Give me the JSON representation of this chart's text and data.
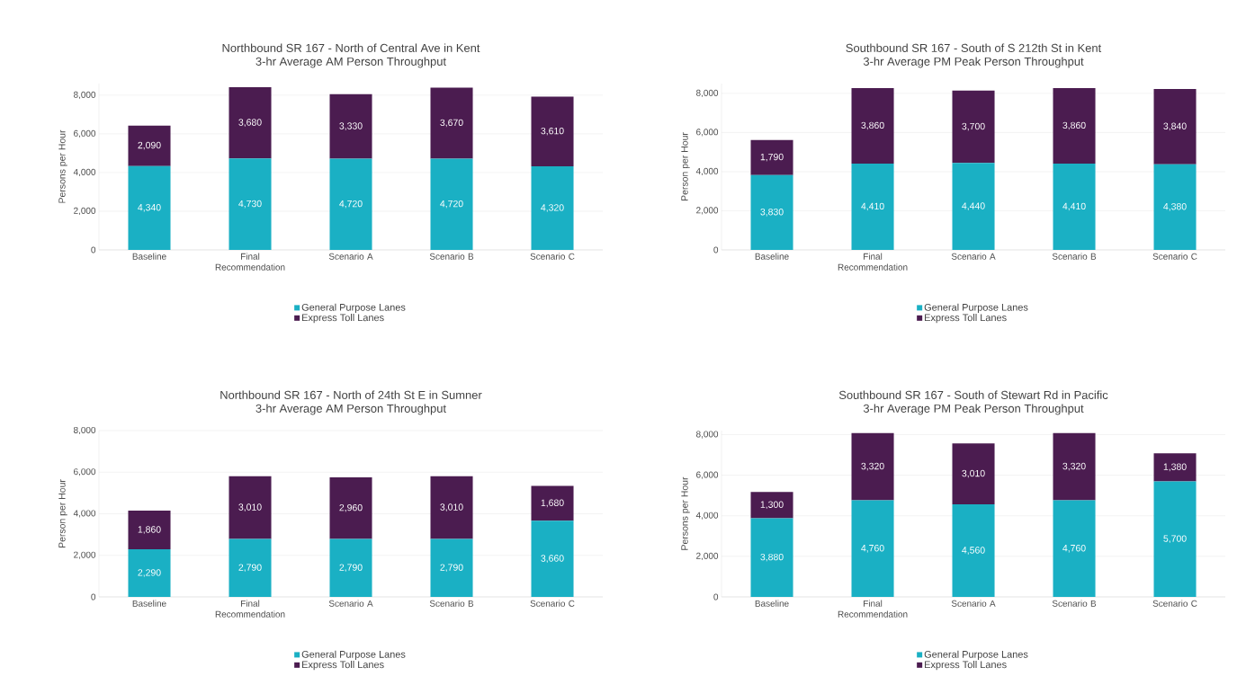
{
  "chart_data": [
    {
      "type": "bar",
      "stacked": true,
      "title": "Northbound SR 167  - North of Central Ave in Kent",
      "subtitle": "3-hr Average AM Person Throughput",
      "ylabel": "Persons per Hour",
      "categories": [
        "Baseline",
        "Final Recommendation",
        "Scenario A",
        "Scenario B",
        "Scenario C"
      ],
      "series": [
        {
          "name": "General Purpose Lanes",
          "color": "#1ab0c4",
          "values": [
            4340,
            4730,
            4720,
            4720,
            4320
          ],
          "value_labels": [
            "4,340",
            "4,730",
            "4,720",
            "4,720",
            "4,320"
          ]
        },
        {
          "name": "Express Toll Lanes",
          "color": "#4b1c50",
          "values": [
            2090,
            3680,
            3330,
            3670,
            3610
          ],
          "value_labels": [
            "2,090",
            "3,680",
            "3,330",
            "3,670",
            "3,610"
          ]
        }
      ],
      "ylim": [
        0,
        8600
      ],
      "yticks": [
        0,
        {
          "value": 2000,
          "label": "2,000"
        },
        {
          "value": 4000,
          "label": "4,000"
        },
        {
          "value": 6000,
          "label": "6,000"
        },
        {
          "value": 8000,
          "label": "8,000"
        }
      ],
      "grid": "y",
      "legend": "bottom"
    },
    {
      "type": "bar",
      "stacked": true,
      "title": "Southbound SR 167 - South of S 212th St in Kent",
      "subtitle": "3-hr Average PM Peak Person Throughput",
      "ylabel": "Person per Hour",
      "categories": [
        "Baseline",
        "Final Recommendation",
        "Scenario A",
        "Scenario B",
        "Scenario C"
      ],
      "series": [
        {
          "name": "General Purpose Lanes",
          "color": "#1ab0c4",
          "values": [
            3830,
            4410,
            4440,
            4410,
            4380
          ],
          "value_labels": [
            "3,830",
            "4,410",
            "4,440",
            "4,410",
            "4,380"
          ]
        },
        {
          "name": "Express Toll Lanes",
          "color": "#4b1c50",
          "values": [
            1790,
            3860,
            3700,
            3860,
            3840
          ],
          "value_labels": [
            "1,790",
            "3,860",
            "3,700",
            "3,860",
            "3,840"
          ]
        }
      ],
      "ylim": [
        0,
        8500
      ],
      "yticks": [
        0,
        {
          "value": 2000,
          "label": "2,000"
        },
        {
          "value": 4000,
          "label": "4,000"
        },
        {
          "value": 6000,
          "label": "6,000"
        },
        {
          "value": 8000,
          "label": "8,000"
        }
      ],
      "grid": "y",
      "legend": "bottom"
    },
    {
      "type": "bar",
      "stacked": true,
      "title": "Northbound SR 167 - North of 24th St E in Sumner",
      "subtitle": "3-hr Average AM Person Throughput",
      "ylabel": "Person per Hour",
      "categories": [
        "Baseline",
        "Final Recommendation",
        "Scenario A",
        "Scenario B",
        "Scenario C"
      ],
      "series": [
        {
          "name": "General Purpose Lanes",
          "color": "#1ab0c4",
          "values": [
            2290,
            2790,
            2790,
            2790,
            3660
          ],
          "value_labels": [
            "2,290",
            "2,790",
            "2,790",
            "2,790",
            "3,660"
          ]
        },
        {
          "name": "Express Toll Lanes",
          "color": "#4b1c50",
          "values": [
            1860,
            3010,
            2960,
            3010,
            1680
          ],
          "value_labels": [
            "1,860",
            "3,010",
            "2,960",
            "3,010",
            "1,680"
          ]
        }
      ],
      "ylim": [
        0,
        8000
      ],
      "yticks": [
        0,
        {
          "value": 2000,
          "label": "2,000"
        },
        {
          "value": 4000,
          "label": "4,000"
        },
        {
          "value": 6000,
          "label": "6,000"
        },
        {
          "value": 8000,
          "label": "8,000"
        }
      ],
      "grid": "y",
      "legend": "bottom"
    },
    {
      "type": "bar",
      "stacked": true,
      "title": "Southbound SR 167 - South of Stewart Rd in Pacific",
      "subtitle": "3-hr Average PM Peak Person Throughput",
      "ylabel": "Persons per Hour",
      "categories": [
        "Baseline",
        "Final Recommendation",
        "Scenario A",
        "Scenario B",
        "Scenario C"
      ],
      "series": [
        {
          "name": "General Purpose Lanes",
          "color": "#1ab0c4",
          "values": [
            3880,
            4760,
            4560,
            4760,
            5700
          ],
          "value_labels": [
            "3,880",
            "4,760",
            "4,560",
            "4,760",
            "5,700"
          ]
        },
        {
          "name": "Express Toll Lanes",
          "color": "#4b1c50",
          "values": [
            1300,
            3320,
            3010,
            3320,
            1380
          ],
          "value_labels": [
            "1,300",
            "3,320",
            "3,010",
            "3,320",
            "1,380"
          ]
        }
      ],
      "ylim": [
        0,
        8200
      ],
      "yticks": [
        0,
        {
          "value": 2000,
          "label": "2,000"
        },
        {
          "value": 4000,
          "label": "4,000"
        },
        {
          "value": 6000,
          "label": "6,000"
        },
        {
          "value": 8000,
          "label": "8,000"
        }
      ],
      "grid": "y",
      "legend": "bottom"
    }
  ]
}
